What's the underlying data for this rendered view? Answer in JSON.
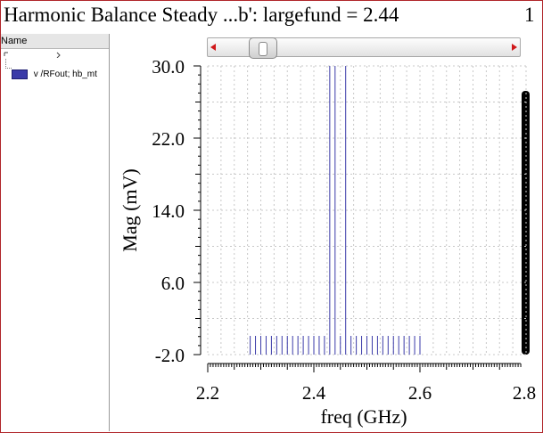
{
  "window": {
    "title": "Harmonic Balance Steady ...b': largefund = 2.44",
    "page_number": "1"
  },
  "sidebar": {
    "header": "Name",
    "items": [
      {
        "label": "v /RFout; hb_mt",
        "color": "#3a3aa8"
      }
    ]
  },
  "scrollbar": {
    "left_arrow": "left-arrow-icon",
    "right_arrow": "right-arrow-icon"
  },
  "chart_data": {
    "type": "bar",
    "title": "",
    "xlabel": "freq (GHz)",
    "ylabel": "Mag (mV)",
    "xlim": [
      2.2,
      2.8
    ],
    "ylim": [
      -2.0,
      30.0
    ],
    "x_ticks": [
      2.2,
      2.4,
      2.6,
      2.8
    ],
    "x_tick_labels": [
      "2.2",
      "2.4",
      "2.6",
      "2.8"
    ],
    "y_ticks": [
      30.0,
      22.0,
      14.0,
      6.0,
      -2.0
    ],
    "y_tick_labels": [
      "30.0",
      "22.0",
      "14.0",
      "6.0",
      "-2.0"
    ],
    "grid": true,
    "color": "#3a3aa8",
    "series": [
      {
        "x": [
          2.28,
          2.29,
          2.3,
          2.31,
          2.32,
          2.33,
          2.34,
          2.35,
          2.36,
          2.37,
          2.38,
          2.39,
          2.4,
          2.41,
          2.42,
          2.43,
          2.44,
          2.45,
          2.46,
          2.47,
          2.48,
          2.49,
          2.5,
          2.51,
          2.52,
          2.53,
          2.54,
          2.55,
          2.56,
          2.57,
          2.58,
          2.59,
          2.6
        ],
        "values": [
          0.1,
          0.1,
          0.1,
          0.1,
          0.1,
          0.1,
          0.1,
          0.1,
          0.1,
          0.1,
          0.1,
          0.1,
          0.1,
          0.1,
          0.1,
          30,
          30,
          0.1,
          30,
          0.1,
          0.1,
          0.1,
          0.1,
          0.1,
          0.1,
          0.1,
          0.1,
          0.1,
          0.1,
          0.1,
          0.1,
          0.1,
          0.1
        ]
      }
    ]
  }
}
